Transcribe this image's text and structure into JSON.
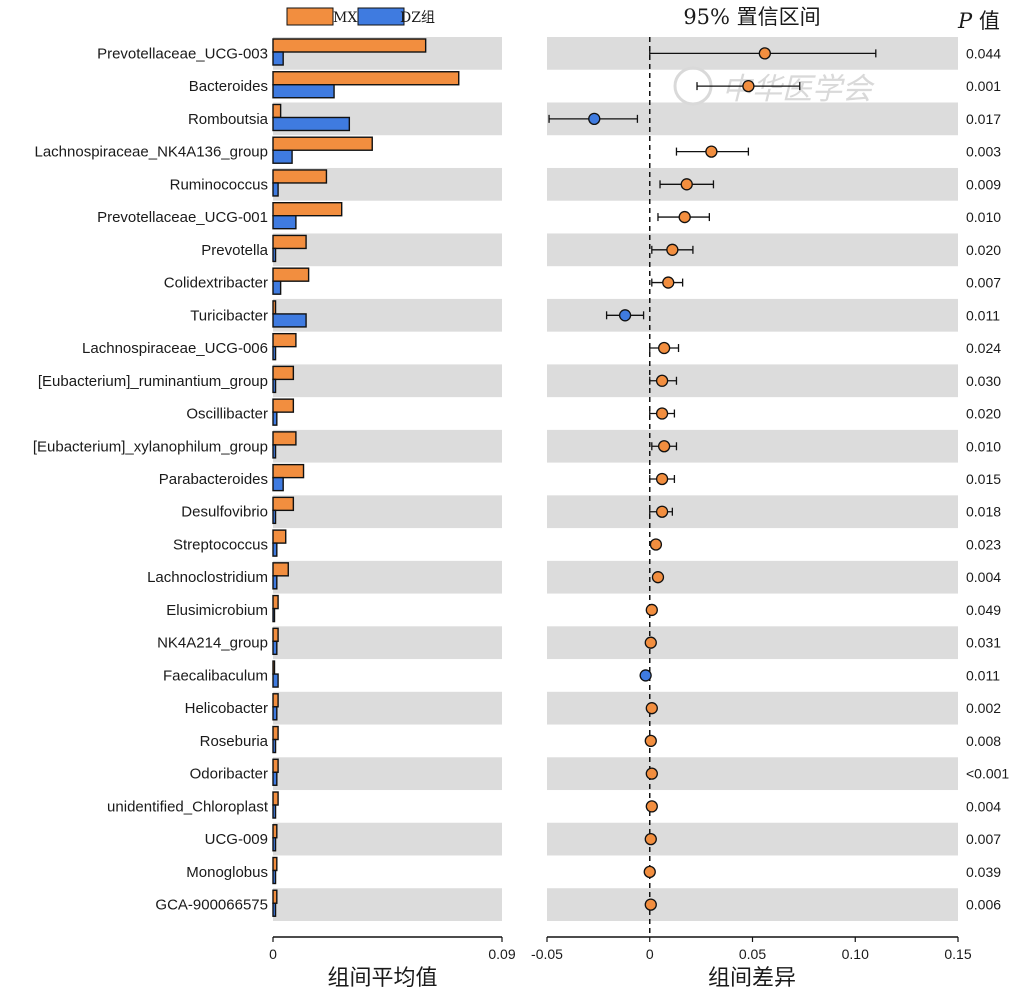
{
  "chart_data": {
    "type": "bar",
    "legend": [
      {
        "name": "MX组",
        "color": "#f28e3f"
      },
      {
        "name": "DZ组",
        "color": "#3f7be0"
      }
    ],
    "legend_placement": "top",
    "taxa": [
      "Prevotellaceae_UCG-003",
      "Bacteroides",
      "Romboutsia",
      "Lachnospiraceae_NK4A136_group",
      "Ruminococcus",
      "Prevotellaceae_UCG-001",
      "Prevotella",
      "Colidextribacter",
      "Turicibacter",
      "Lachnospiraceae_UCG-006",
      "[Eubacterium]_ruminantium_group",
      "Oscillibacter",
      "[Eubacterium]_xylanophilum_group",
      "Parabacteroides",
      "Desulfovibrio",
      "Streptococcus",
      "Lachnoclostridium",
      "Elusimicrobium",
      "NK4A214_group",
      "Faecalibaculum",
      "Helicobacter",
      "Roseburia",
      "Odoribacter",
      "unidentified_Chloroplast",
      "UCG-009",
      "Monoglobus",
      "GCA-900066575"
    ],
    "mean_abundance": {
      "xlabel": "组间平均值",
      "xlim": [
        0,
        0.09
      ],
      "ticks": [
        0,
        0.09
      ],
      "tick_labels": [
        "0",
        "0.09"
      ],
      "series": [
        {
          "name": "MX组",
          "values": [
            0.06,
            0.073,
            0.003,
            0.039,
            0.021,
            0.027,
            0.013,
            0.014,
            0.001,
            0.009,
            0.008,
            0.008,
            0.009,
            0.012,
            0.008,
            0.005,
            0.006,
            0.002,
            0.002,
            0.0005,
            0.002,
            0.002,
            0.002,
            0.002,
            0.0015,
            0.0015,
            0.0015
          ]
        },
        {
          "name": "DZ组",
          "values": [
            0.004,
            0.024,
            0.03,
            0.0075,
            0.002,
            0.009,
            0.001,
            0.003,
            0.013,
            0.001,
            0.001,
            0.0015,
            0.001,
            0.004,
            0.001,
            0.0015,
            0.0015,
            0.0005,
            0.0015,
            0.002,
            0.0015,
            0.001,
            0.0015,
            0.001,
            0.001,
            0.001,
            0.001
          ]
        }
      ]
    },
    "difference": {
      "title": "95% 置信区间",
      "xlabel": "组间差异",
      "xlim": [
        -0.05,
        0.15
      ],
      "ticks": [
        -0.05,
        0,
        0.05,
        0.1,
        0.15
      ],
      "tick_labels": [
        "-0.05",
        "0",
        "0.05",
        "0.10",
        "0.15"
      ],
      "estimate": [
        0.056,
        0.048,
        -0.027,
        0.03,
        0.018,
        0.017,
        0.011,
        0.009,
        -0.012,
        0.007,
        0.006,
        0.006,
        0.007,
        0.006,
        0.006,
        0.003,
        0.004,
        0.001,
        0.0005,
        -0.002,
        0.001,
        0.0005,
        0.001,
        0.001,
        0.0005,
        0.0,
        0.0005
      ],
      "ci_low": [
        0.0,
        0.023,
        -0.049,
        0.013,
        0.005,
        0.004,
        0.001,
        0.001,
        -0.021,
        0.0,
        0.0,
        0.0,
        0.001,
        0.0,
        0.0,
        0.001,
        0.003,
        0.0,
        -0.0005,
        -0.003,
        0.0,
        -0.0005,
        0.0,
        0.0,
        -0.0005,
        -0.001,
        -0.0005
      ],
      "ci_high": [
        0.11,
        0.073,
        -0.006,
        0.048,
        0.031,
        0.029,
        0.021,
        0.016,
        -0.003,
        0.014,
        0.013,
        0.012,
        0.013,
        0.012,
        0.011,
        0.004,
        0.005,
        0.002,
        0.0015,
        -0.001,
        0.002,
        0.0015,
        0.002,
        0.002,
        0.0015,
        0.001,
        0.0015
      ],
      "reference_line": 0
    },
    "p_values": {
      "title_italic": "P",
      "title_rest": " 值",
      "values": [
        "0.044",
        "0.001",
        "0.017",
        "0.003",
        "0.009",
        "0.010",
        "0.020",
        "0.007",
        "0.011",
        "0.024",
        "0.030",
        "0.020",
        "0.010",
        "0.015",
        "0.018",
        "0.023",
        "0.004",
        "0.049",
        "0.031",
        "0.011",
        "0.002",
        "0.008",
        "<0.001",
        "0.004",
        "0.007",
        "0.039",
        "0.006"
      ]
    },
    "grid": false,
    "alternating_row_shading": "#dcdcdc"
  },
  "watermark": "中华医学会"
}
